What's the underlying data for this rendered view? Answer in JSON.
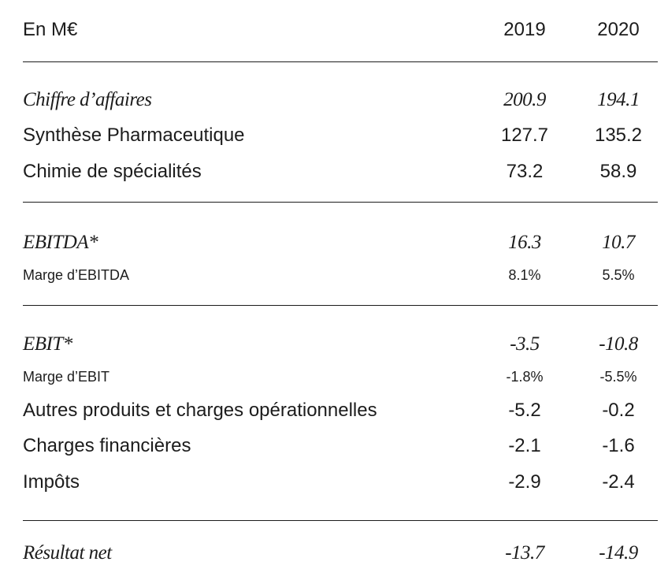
{
  "header": {
    "unit_label": "En M€",
    "col_2019": "2019",
    "col_2020": "2020"
  },
  "rows": {
    "chiffre_affaires": {
      "label": "Chiffre d’affaires",
      "v2019": "200.9",
      "v2020": "194.1"
    },
    "synthese_pharma": {
      "label": "Synthèse Pharmaceutique",
      "v2019": "127.7",
      "v2020": "135.2"
    },
    "chimie_specialites": {
      "label": "Chimie de spécialités",
      "v2019": "73.2",
      "v2020": "58.9"
    },
    "ebitda": {
      "label": "EBITDA*",
      "v2019": "16.3",
      "v2020": "10.7"
    },
    "marge_ebitda": {
      "label": "Marge d’EBITDA",
      "v2019": "8.1%",
      "v2020": "5.5%"
    },
    "ebit": {
      "label": "EBIT*",
      "v2019": "-3.5",
      "v2020": "-10.8"
    },
    "marge_ebit": {
      "label": "Marge d’EBIT",
      "v2019": "-1.8%",
      "v2020": "-5.5%"
    },
    "autres_produits": {
      "label": "Autres produits et charges opérationnelles",
      "v2019": "-5.2",
      "v2020": "-0.2"
    },
    "charges_financieres": {
      "label": "Charges financières",
      "v2019": "-2.1",
      "v2020": "-1.6"
    },
    "impots": {
      "label": "Impôts",
      "v2019": "-2.9",
      "v2020": "-2.4"
    },
    "resultat_net": {
      "label": "Résultat net",
      "v2019": "-13.7",
      "v2020": "-14.9"
    }
  }
}
